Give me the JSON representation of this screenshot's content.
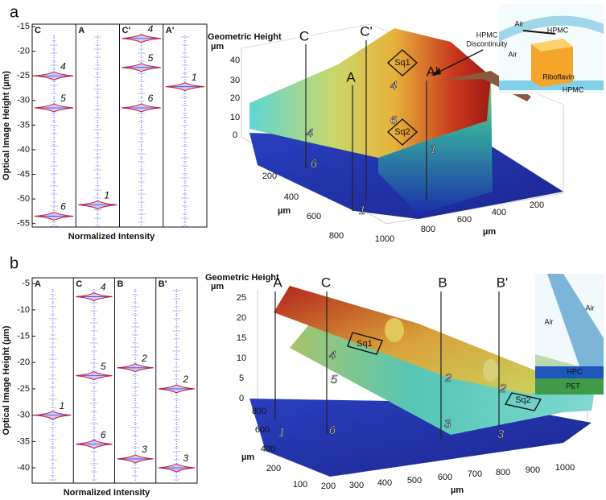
{
  "panels": [
    {
      "label": "a",
      "profiles": {
        "y_label": "Optical Image Height (µm)",
        "x_label": "Normalized Intensity",
        "ylim": [
          -55.7,
          -14.5
        ],
        "yticks": [
          -15,
          -20,
          -25,
          -30,
          -35,
          -40,
          -45,
          -50,
          -55
        ],
        "columns": [
          {
            "name": "C",
            "peaks": [
              {
                "label": "4",
                "value": -25
              },
              {
                "label": "5",
                "value": -31.5
              },
              {
                "label": "6",
                "value": -53.5
              }
            ]
          },
          {
            "name": "A",
            "peaks": [
              {
                "label": "1",
                "value": -51.2
              }
            ]
          },
          {
            "name": "C'",
            "peaks": [
              {
                "label": "4",
                "value": -17.4
              },
              {
                "label": "5",
                "value": -23.3
              },
              {
                "label": "6",
                "value": -31.5
              }
            ]
          },
          {
            "name": "A'",
            "peaks": [
              {
                "label": "1",
                "value": -27.2
              }
            ]
          }
        ]
      },
      "surface": {
        "z_title": "Geometric Height",
        "z_unit": "µm",
        "z_ticks": [
          40,
          30,
          20,
          10,
          0
        ],
        "y_ticks": [
          200,
          400,
          600,
          800
        ],
        "y_unit": "µm",
        "x_ticks": [
          1000,
          800,
          600,
          400,
          200
        ],
        "x_unit": "µm",
        "sections": [
          "C",
          "C'",
          "A",
          "A'"
        ],
        "regions": [
          "Sq1",
          "Sq2"
        ],
        "layer_labels": [
          "4",
          "6",
          "1",
          "4",
          "6",
          "1"
        ],
        "annotation": [
          "HPMC",
          "Discontinuity"
        ],
        "inset": [
          "Air",
          "HPMC",
          "Air",
          "Riboflavin",
          "HPMC"
        ]
      }
    },
    {
      "label": "b",
      "profiles": {
        "y_label": "Optical Image Height (µm)",
        "x_label": "Normalized Intensity",
        "ylim": [
          -42.9,
          -3.9
        ],
        "yticks": [
          -5,
          -10,
          -15,
          -20,
          -25,
          -30,
          -35,
          -40
        ],
        "columns": [
          {
            "name": "A",
            "peaks": [
              {
                "label": "1",
                "value": -30
              }
            ]
          },
          {
            "name": "C",
            "peaks": [
              {
                "label": "4",
                "value": -7.5
              },
              {
                "label": "5",
                "value": -22.5
              },
              {
                "label": "6",
                "value": -35.5
              }
            ]
          },
          {
            "name": "B",
            "peaks": [
              {
                "label": "2",
                "value": -21
              },
              {
                "label": "3",
                "value": -38.3
              }
            ]
          },
          {
            "name": "B'",
            "peaks": [
              {
                "label": "2",
                "value": -25
              },
              {
                "label": "3",
                "value": -40
              }
            ]
          }
        ]
      },
      "surface": {
        "z_title": "Geometric Height",
        "z_unit": "µm",
        "z_ticks": [
          25,
          20,
          15,
          10,
          5,
          0
        ],
        "y_ticks": [
          800,
          600,
          400,
          200
        ],
        "y_unit": "µm",
        "x_ticks": [
          100,
          200,
          300,
          400,
          500,
          600,
          700,
          800,
          900,
          1000
        ],
        "x_unit": "µm",
        "sections": [
          "A",
          "C",
          "B",
          "B'"
        ],
        "regions": [
          "Sq1",
          "Sq2"
        ],
        "layer_labels": [
          "4",
          "5",
          "2",
          "2",
          "1",
          "6",
          "3",
          "3"
        ],
        "inset": [
          "Air",
          "Air",
          "HPC",
          "PET"
        ]
      }
    }
  ]
}
